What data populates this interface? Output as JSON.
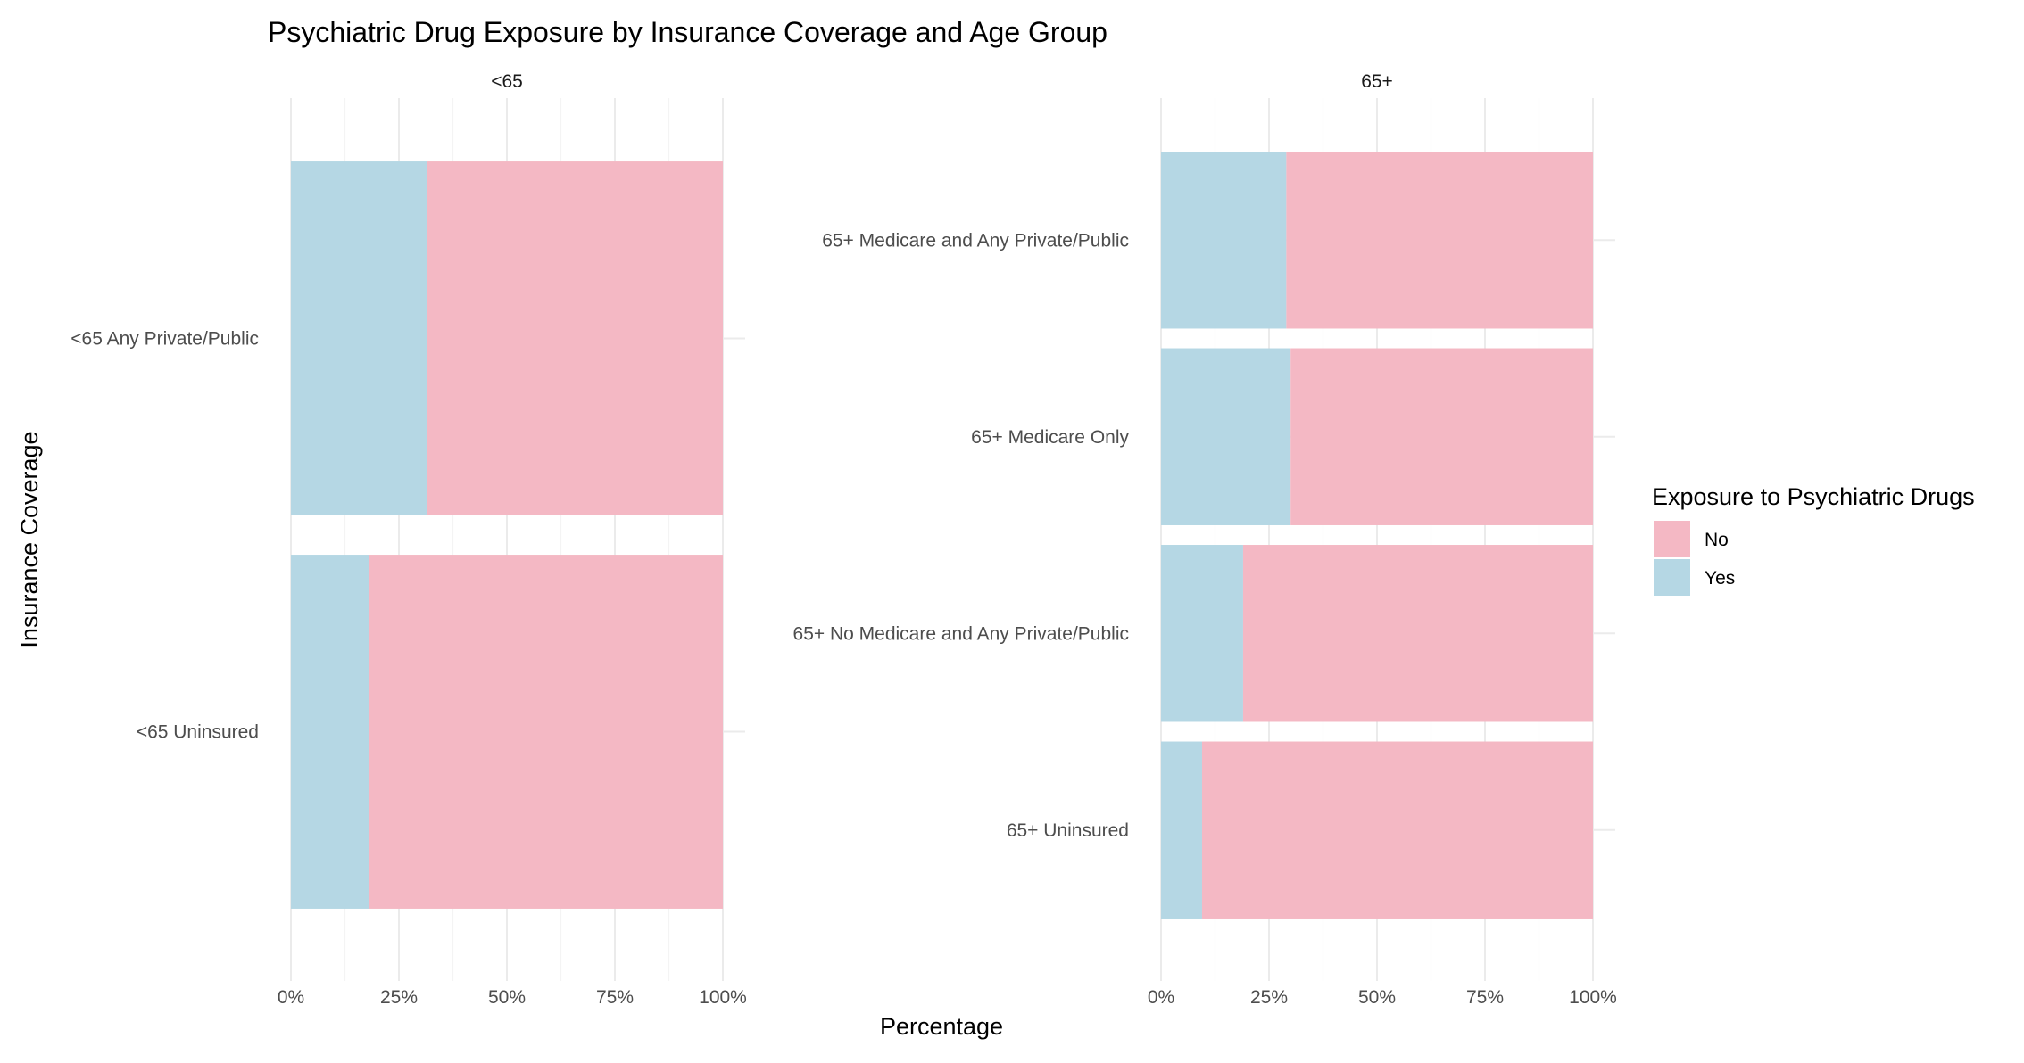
{
  "chart_data": {
    "type": "bar",
    "orientation": "horizontal",
    "stacked": "percent",
    "title": "Psychiatric Drug Exposure by Insurance Coverage and Age Group",
    "xlabel": "Percentage",
    "ylabel": "Insurance Coverage",
    "xlim": [
      0,
      100
    ],
    "x_ticks": [
      "0%",
      "25%",
      "50%",
      "75%",
      "100%"
    ],
    "grid": true,
    "legend": {
      "title": "Exposure to Psychiatric Drugs",
      "position": "right",
      "entries": [
        {
          "label": "No",
          "color": "#f4b8c4"
        },
        {
          "label": "Yes",
          "color": "#b5d7e4"
        }
      ]
    },
    "panels": [
      {
        "label": "<65",
        "categories": [
          "<65 Any Private/Public",
          "<65 Uninsured"
        ],
        "series": [
          {
            "name": "Yes",
            "values": [
              31.5,
              18
            ]
          },
          {
            "name": "No",
            "values": [
              68.5,
              82
            ]
          }
        ]
      },
      {
        "label": "65+",
        "categories": [
          "65+ Medicare and Any Private/Public",
          "65+ Medicare Only",
          "65+ No Medicare and Any Private/Public",
          "65+ Uninsured"
        ],
        "series": [
          {
            "name": "Yes",
            "values": [
              29,
              30,
              19,
              9.5
            ]
          },
          {
            "name": "No",
            "values": [
              71,
              70,
              81,
              90.5
            ]
          }
        ]
      }
    ]
  }
}
